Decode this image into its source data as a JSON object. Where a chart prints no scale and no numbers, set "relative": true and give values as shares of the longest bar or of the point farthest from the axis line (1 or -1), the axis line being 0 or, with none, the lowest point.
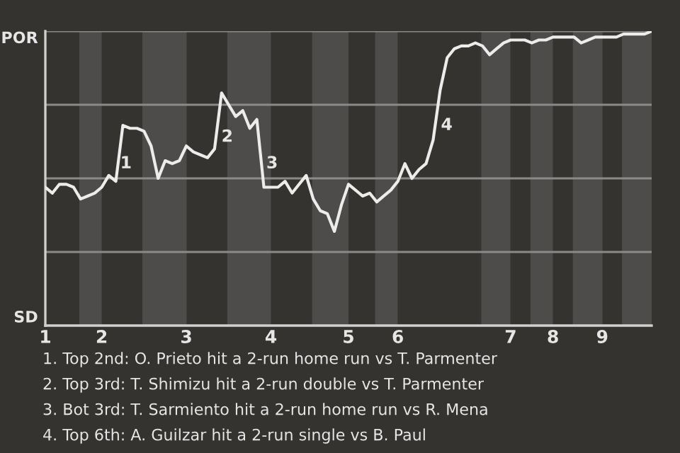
{
  "chart_data": {
    "type": "line",
    "relative": true,
    "categories": [
      "1",
      null,
      null,
      null,
      null,
      null,
      null,
      null,
      "2",
      null,
      null,
      null,
      null,
      null,
      null,
      null,
      null,
      null,
      null,
      null,
      "3",
      null,
      null,
      null,
      null,
      null,
      null,
      null,
      null,
      null,
      null,
      null,
      "4",
      null,
      null,
      null,
      null,
      null,
      null,
      null,
      null,
      null,
      null,
      "5",
      null,
      null,
      null,
      null,
      null,
      null,
      "6",
      null,
      null,
      null,
      null,
      null,
      null,
      null,
      null,
      null,
      null,
      null,
      null,
      null,
      null,
      null,
      "7",
      null,
      null,
      null,
      null,
      null,
      "8",
      null,
      null,
      null,
      null,
      null,
      null,
      "9",
      null,
      null,
      null,
      null,
      null,
      null,
      null
    ],
    "series": [
      {
        "color": "#ececec",
        "values": [
          0.47,
          0.45,
          0.48,
          0.48,
          0.47,
          0.43,
          0.44,
          0.45,
          0.47,
          0.51,
          0.49,
          0.68,
          0.67,
          0.67,
          0.66,
          0.61,
          0.5,
          0.56,
          0.55,
          0.56,
          0.61,
          0.59,
          0.58,
          0.57,
          0.6,
          0.79,
          0.75,
          0.71,
          0.73,
          0.67,
          0.7,
          0.47,
          0.47,
          0.47,
          0.49,
          0.45,
          0.48,
          0.51,
          0.43,
          0.39,
          0.38,
          0.32,
          0.41,
          0.48,
          0.46,
          0.44,
          0.45,
          0.42,
          0.44,
          0.46,
          0.49,
          0.55,
          0.5,
          0.53,
          0.55,
          0.63,
          0.8,
          0.91,
          0.94,
          0.95,
          0.95,
          0.96,
          0.95,
          0.92,
          0.94,
          0.96,
          0.97,
          0.97,
          0.97,
          0.96,
          0.97,
          0.97,
          0.98,
          0.98,
          0.98,
          0.98,
          0.96,
          0.97,
          0.98,
          0.98,
          0.98,
          0.98,
          0.99,
          0.99,
          0.99,
          0.99,
          1.0
        ]
      }
    ],
    "grid": "y",
    "tick_labels": "x",
    "marker": "none",
    "line_style": "solid",
    "annotations": [
      "1",
      "2",
      "3",
      "4",
      "POR",
      "SD",
      "1. Top 2nd: O. Prieto hit a 2-run home run vs T. Parmenter",
      "2. Top 3rd: T. Shimizu hit a 2-run double vs T. Parmenter",
      "3. Bot 3rd: T. Sarmiento hit a 2-run home run vs R. Mena",
      "4. Top 6th: A. Guilzar hit a 2-run single vs B. Paul"
    ]
  }
}
